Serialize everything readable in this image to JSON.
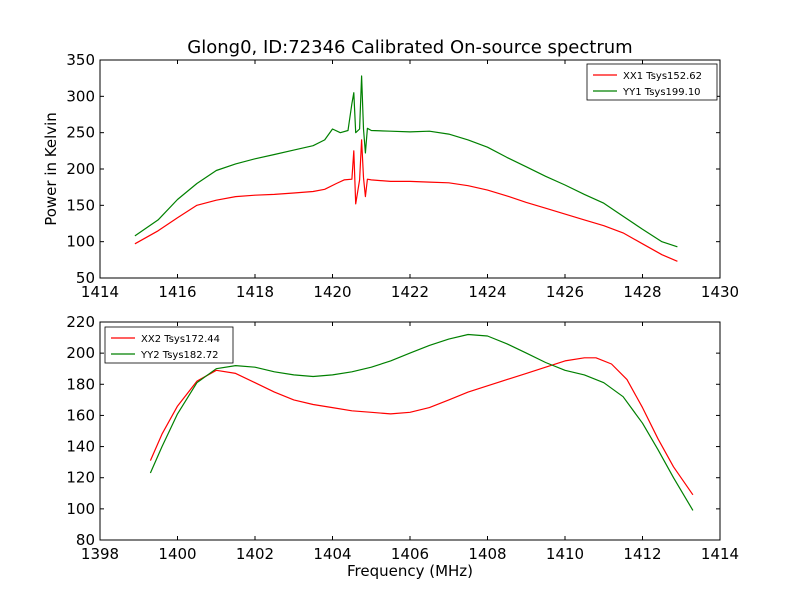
{
  "figure": {
    "title": "Glong0, ID:72346 Calibrated On-source spectrum"
  },
  "chart_data": [
    {
      "type": "line",
      "title": "Glong0, ID:72346 Calibrated On-source spectrum",
      "xlabel": "",
      "ylabel": "Power in Kelvin",
      "xlim": [
        1414,
        1430
      ],
      "ylim": [
        50,
        350
      ],
      "xticks": [
        1414,
        1416,
        1418,
        1420,
        1422,
        1424,
        1426,
        1428,
        1430
      ],
      "yticks": [
        50,
        100,
        150,
        200,
        250,
        300,
        350
      ],
      "grid": false,
      "legend": "top-right",
      "series": [
        {
          "name": "XX1 Tsys152.62",
          "color": "#ff0000",
          "x": [
            1414.9,
            1415.5,
            1416.0,
            1416.5,
            1417.0,
            1417.5,
            1418.0,
            1418.5,
            1419.0,
            1419.5,
            1419.8,
            1420.1,
            1420.3,
            1420.5,
            1420.55,
            1420.6,
            1420.7,
            1420.75,
            1420.8,
            1420.85,
            1420.9,
            1421.0,
            1421.5,
            1422.0,
            1422.5,
            1423.0,
            1423.5,
            1424.0,
            1424.5,
            1425.0,
            1425.5,
            1426.0,
            1426.5,
            1427.0,
            1427.5,
            1428.0,
            1428.5,
            1428.9
          ],
          "y": [
            97,
            115,
            133,
            150,
            157,
            162,
            164,
            165,
            167,
            169,
            172,
            180,
            185,
            186,
            225,
            152,
            185,
            240,
            188,
            162,
            186,
            185,
            183,
            183,
            182,
            181,
            177,
            171,
            163,
            154,
            146,
            138,
            130,
            122,
            112,
            97,
            82,
            73
          ]
        },
        {
          "name": "YY1 Tsys199.10",
          "color": "#008000",
          "x": [
            1414.9,
            1415.5,
            1416.0,
            1416.5,
            1417.0,
            1417.5,
            1418.0,
            1418.5,
            1419.0,
            1419.5,
            1419.8,
            1420.0,
            1420.2,
            1420.4,
            1420.5,
            1420.55,
            1420.6,
            1420.7,
            1420.75,
            1420.8,
            1420.85,
            1420.9,
            1421.0,
            1421.5,
            1422.0,
            1422.5,
            1423.0,
            1423.5,
            1424.0,
            1424.5,
            1425.0,
            1425.5,
            1426.0,
            1426.5,
            1427.0,
            1427.5,
            1428.0,
            1428.5,
            1428.9
          ],
          "y": [
            108,
            130,
            158,
            180,
            198,
            207,
            214,
            220,
            226,
            232,
            240,
            255,
            250,
            253,
            290,
            305,
            250,
            255,
            328,
            255,
            222,
            256,
            253,
            252,
            251,
            252,
            248,
            240,
            230,
            216,
            203,
            190,
            178,
            165,
            153,
            135,
            117,
            100,
            93
          ]
        }
      ]
    },
    {
      "type": "line",
      "title": "",
      "xlabel": "Frequency (MHz)",
      "ylabel": "",
      "xlim": [
        1398,
        1414
      ],
      "ylim": [
        80,
        220
      ],
      "xticks": [
        1398,
        1400,
        1402,
        1404,
        1406,
        1408,
        1410,
        1412,
        1414
      ],
      "yticks": [
        80,
        100,
        120,
        140,
        160,
        180,
        200,
        220
      ],
      "grid": false,
      "legend": "top-left",
      "series": [
        {
          "name": "XX2 Tsys172.44",
          "color": "#ff0000",
          "x": [
            1399.3,
            1399.6,
            1400.0,
            1400.5,
            1401.0,
            1401.5,
            1402.0,
            1402.5,
            1403.0,
            1403.5,
            1404.0,
            1404.5,
            1405.0,
            1405.5,
            1406.0,
            1406.5,
            1407.0,
            1407.5,
            1408.0,
            1408.5,
            1409.0,
            1409.5,
            1410.0,
            1410.5,
            1410.8,
            1411.2,
            1411.6,
            1412.0,
            1412.4,
            1412.8,
            1413.3
          ],
          "y": [
            131,
            148,
            166,
            182,
            189,
            187,
            181,
            175,
            170,
            167,
            165,
            163,
            162,
            161,
            162,
            165,
            170,
            175,
            179,
            183,
            187,
            191,
            195,
            197,
            197,
            193,
            183,
            165,
            145,
            127,
            109
          ]
        },
        {
          "name": "YY2 Tsys182.72",
          "color": "#008000",
          "x": [
            1399.3,
            1399.6,
            1400.0,
            1400.5,
            1401.0,
            1401.5,
            1402.0,
            1402.5,
            1403.0,
            1403.5,
            1404.0,
            1404.5,
            1405.0,
            1405.5,
            1406.0,
            1406.5,
            1407.0,
            1407.5,
            1408.0,
            1408.5,
            1409.0,
            1409.5,
            1410.0,
            1410.5,
            1411.0,
            1411.5,
            1412.0,
            1412.4,
            1412.8,
            1413.3
          ],
          "y": [
            123,
            140,
            161,
            181,
            190,
            192,
            191,
            188,
            186,
            185,
            186,
            188,
            191,
            195,
            200,
            205,
            209,
            212,
            211,
            206,
            200,
            194,
            189,
            186,
            181,
            172,
            155,
            138,
            120,
            99
          ]
        }
      ]
    }
  ]
}
